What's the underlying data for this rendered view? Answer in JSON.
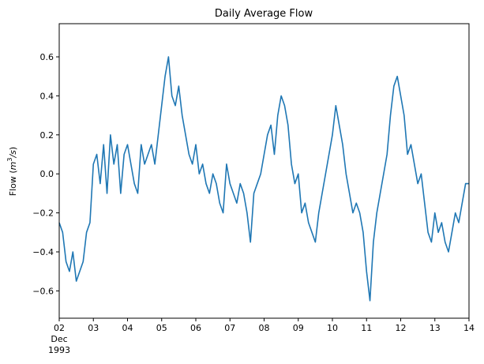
{
  "chart_data": {
    "type": "line",
    "title": "Daily Average Flow",
    "xlabel": "",
    "ylabel": "Flow (m³/s)",
    "ylabel_parts": {
      "prefix": "Flow (",
      "base": "m",
      "exponent": "3",
      "suffix": "/s)"
    },
    "x_axis": {
      "unit": "day of December 1993",
      "xlim": [
        2,
        14
      ],
      "ticks": [
        {
          "value": 2,
          "label": "02",
          "sub1": "Dec",
          "sub2": "1993"
        },
        {
          "value": 3,
          "label": "03"
        },
        {
          "value": 4,
          "label": "04"
        },
        {
          "value": 5,
          "label": "05"
        },
        {
          "value": 6,
          "label": "06"
        },
        {
          "value": 7,
          "label": "07"
        },
        {
          "value": 8,
          "label": "08"
        },
        {
          "value": 9,
          "label": "09"
        },
        {
          "value": 10,
          "label": "10"
        },
        {
          "value": 11,
          "label": "11"
        },
        {
          "value": 12,
          "label": "12"
        },
        {
          "value": 13,
          "label": "13"
        },
        {
          "value": 14,
          "label": "14"
        }
      ]
    },
    "y_axis": {
      "ylim": [
        -0.74,
        0.77
      ],
      "ticks": [
        {
          "value": -0.6,
          "label": "−0.6"
        },
        {
          "value": -0.4,
          "label": "−0.4"
        },
        {
          "value": -0.2,
          "label": "−0.2"
        },
        {
          "value": 0.0,
          "label": "0.0"
        },
        {
          "value": 0.2,
          "label": "0.2"
        },
        {
          "value": 0.4,
          "label": "0.4"
        },
        {
          "value": 0.6,
          "label": "0.6"
        }
      ]
    },
    "grid": false,
    "series": [
      {
        "color": "#1f77b4",
        "x": [
          2.0,
          2.1,
          2.2,
          2.3,
          2.4,
          2.5,
          2.6,
          2.7,
          2.8,
          2.9,
          3.0,
          3.1,
          3.2,
          3.3,
          3.4,
          3.5,
          3.6,
          3.7,
          3.8,
          3.9,
          4.0,
          4.1,
          4.2,
          4.3,
          4.4,
          4.5,
          4.6,
          4.7,
          4.8,
          4.9,
          5.0,
          5.1,
          5.2,
          5.3,
          5.4,
          5.5,
          5.6,
          5.7,
          5.8,
          5.9,
          6.0,
          6.1,
          6.2,
          6.3,
          6.4,
          6.5,
          6.6,
          6.7,
          6.8,
          6.9,
          7.0,
          7.1,
          7.2,
          7.3,
          7.4,
          7.5,
          7.6,
          7.7,
          7.8,
          7.9,
          8.0,
          8.1,
          8.2,
          8.3,
          8.4,
          8.5,
          8.6,
          8.7,
          8.8,
          8.9,
          9.0,
          9.1,
          9.2,
          9.3,
          9.4,
          9.5,
          9.6,
          9.7,
          9.8,
          9.9,
          10.0,
          10.1,
          10.2,
          10.3,
          10.4,
          10.5,
          10.6,
          10.7,
          10.8,
          10.9,
          11.0,
          11.1,
          11.2,
          11.3,
          11.4,
          11.5,
          11.6,
          11.7,
          11.8,
          11.9,
          12.0,
          12.1,
          12.2,
          12.3,
          12.4,
          12.5,
          12.6,
          12.7,
          12.8,
          12.9,
          13.0,
          13.1,
          13.2,
          13.3,
          13.4,
          13.5,
          13.6,
          13.7,
          13.8,
          13.9,
          14.0
        ],
        "y": [
          -0.25,
          -0.3,
          -0.45,
          -0.5,
          -0.4,
          -0.55,
          -0.5,
          -0.45,
          -0.3,
          -0.25,
          0.05,
          0.1,
          -0.05,
          0.15,
          -0.1,
          0.2,
          0.05,
          0.15,
          -0.1,
          0.1,
          0.15,
          0.05,
          -0.05,
          -0.1,
          0.15,
          0.05,
          0.1,
          0.15,
          0.05,
          0.2,
          0.35,
          0.5,
          0.6,
          0.4,
          0.35,
          0.45,
          0.3,
          0.2,
          0.1,
          0.05,
          0.15,
          0.0,
          0.05,
          -0.05,
          -0.1,
          0.0,
          -0.05,
          -0.15,
          -0.2,
          0.05,
          -0.05,
          -0.1,
          -0.15,
          -0.05,
          -0.1,
          -0.2,
          -0.35,
          -0.1,
          -0.05,
          0.0,
          0.1,
          0.2,
          0.25,
          0.1,
          0.3,
          0.4,
          0.35,
          0.25,
          0.05,
          -0.05,
          0.0,
          -0.2,
          -0.15,
          -0.25,
          -0.3,
          -0.35,
          -0.2,
          -0.1,
          0.0,
          0.1,
          0.2,
          0.35,
          0.25,
          0.15,
          0.0,
          -0.1,
          -0.2,
          -0.15,
          -0.2,
          -0.3,
          -0.5,
          -0.65,
          -0.35,
          -0.2,
          -0.1,
          0.0,
          0.1,
          0.3,
          0.45,
          0.5,
          0.4,
          0.3,
          0.1,
          0.15,
          0.05,
          -0.05,
          0.0,
          -0.15,
          -0.3,
          -0.35,
          -0.2,
          -0.3,
          -0.25,
          -0.35,
          -0.4,
          -0.3,
          -0.2,
          -0.25,
          -0.15,
          -0.05,
          -0.05
        ]
      }
    ]
  }
}
